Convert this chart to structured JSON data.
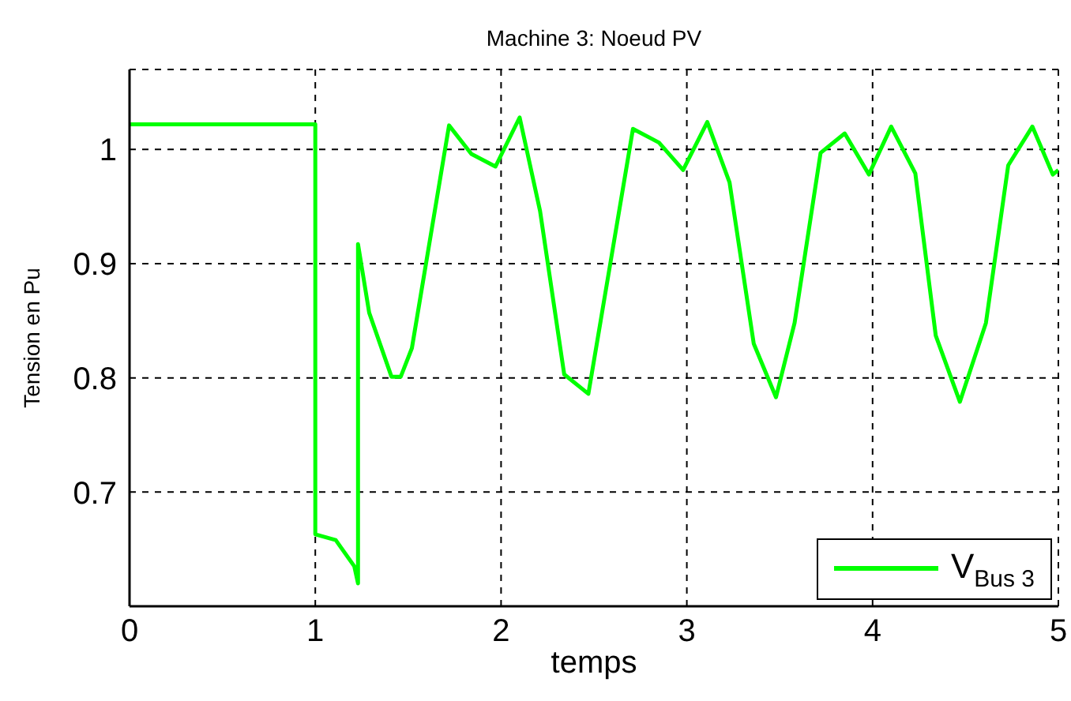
{
  "chart_data": {
    "type": "line",
    "title": "Machine 3: Noeud PV",
    "xlabel": "temps",
    "ylabel": "Tension en Pu",
    "x": [
      0,
      1,
      1,
      1.11,
      1.21,
      1.23,
      1.23,
      1.29,
      1.41,
      1.46,
      1.52,
      1.72,
      1.84,
      1.97,
      2.1,
      2.21,
      2.34,
      2.47,
      2.71,
      2.85,
      2.98,
      3.11,
      3.23,
      3.36,
      3.48,
      3.58,
      3.72,
      3.85,
      3.98,
      4.1,
      4.23,
      4.34,
      4.47,
      4.61,
      4.73,
      4.86,
      4.97,
      5
    ],
    "series": [
      {
        "name": "V$_{Bus 3}$",
        "color": "#00ff00",
        "values": [
          1.022,
          1.022,
          0.663,
          0.658,
          0.635,
          0.62,
          0.917,
          0.857,
          0.801,
          0.801,
          0.826,
          1.021,
          0.996,
          0.985,
          1.028,
          0.946,
          0.803,
          0.786,
          1.018,
          1.006,
          0.982,
          1.024,
          0.971,
          0.83,
          0.783,
          0.848,
          0.997,
          1.014,
          0.978,
          1.02,
          0.979,
          0.837,
          0.779,
          0.848,
          0.986,
          1.02,
          0.978,
          0.982
        ]
      }
    ],
    "xlim": [
      0,
      5
    ],
    "xticks": [
      0,
      1,
      2,
      3,
      4,
      5
    ],
    "ylim": [
      0.6,
      1.07
    ],
    "yticks": [
      0.7,
      0.8,
      0.9,
      1
    ],
    "grid": true,
    "legend": "bottom right",
    "marker": "none",
    "line_style": "solid"
  }
}
